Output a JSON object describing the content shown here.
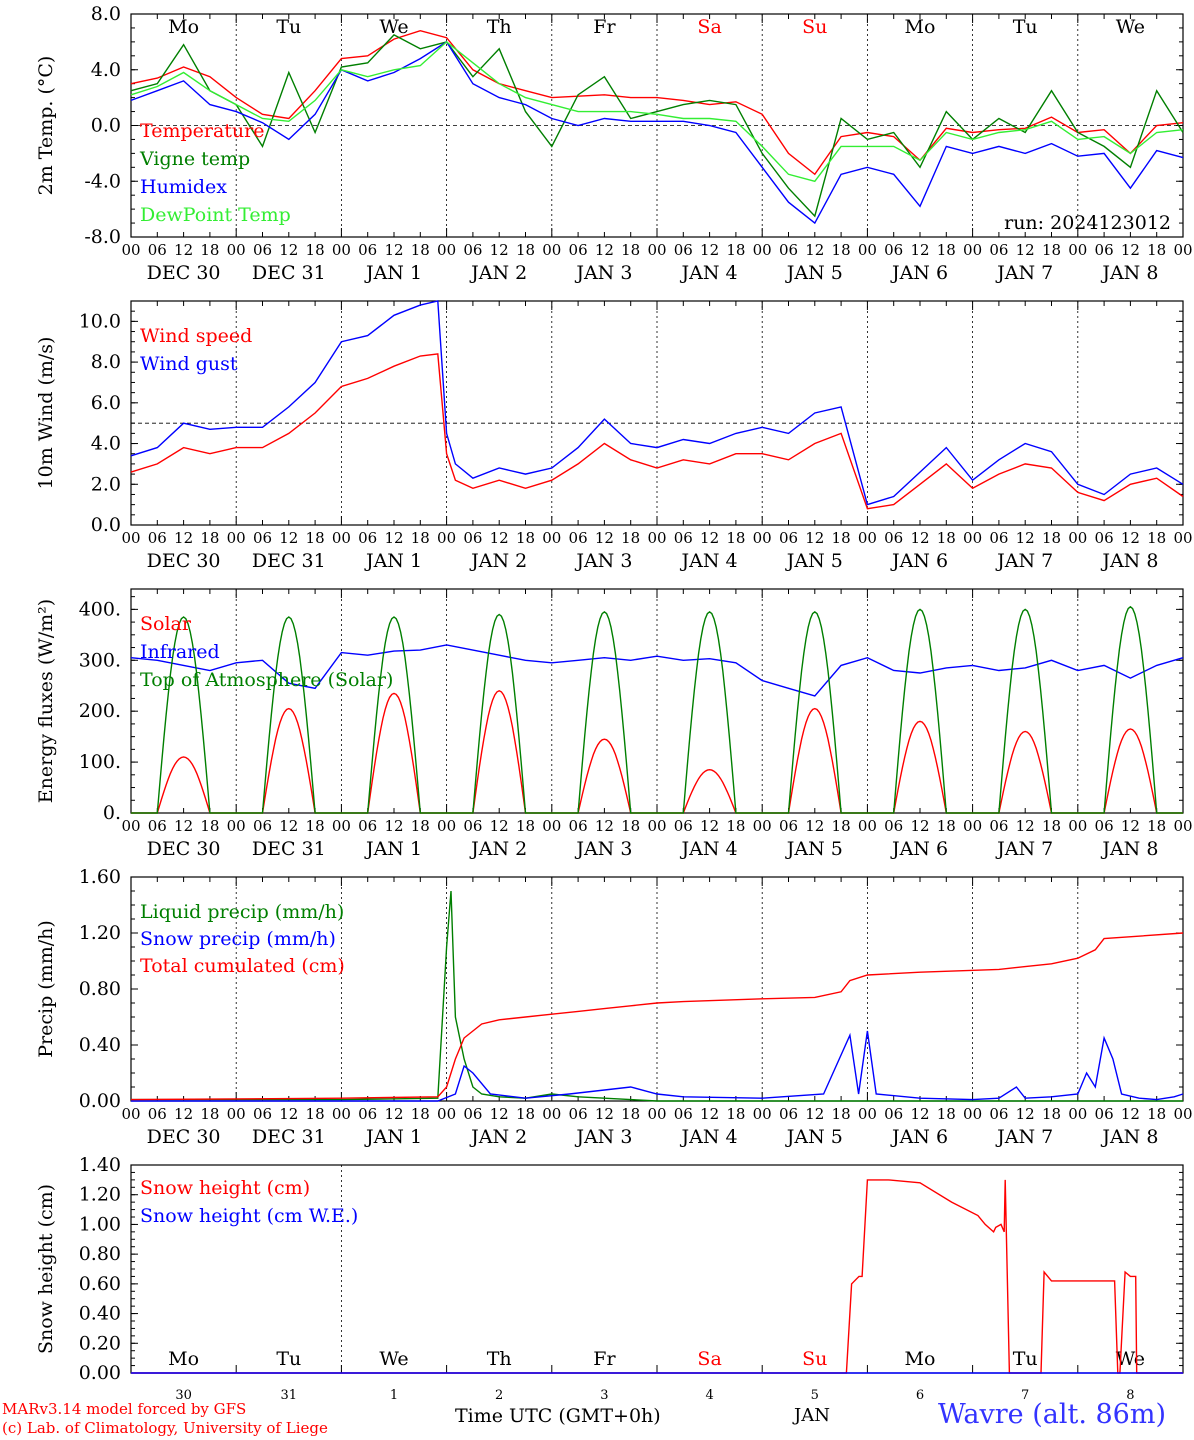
{
  "footer": {
    "credit_line1": "MARv3.14 model forced by GFS",
    "credit_line2": "(c) Lab. of Climatology, University of Liege",
    "time_axis_label": "Time UTC (GMT+0h)",
    "month_label": "JAN",
    "station": "Wavre (alt. 86m)"
  },
  "colors": {
    "red": "#ff0000",
    "green": "#007f00",
    "blue": "#0000ff",
    "lightgreen": "#33ee33",
    "label_red": "#ff0000",
    "station_blue": "#3333ff"
  },
  "weekdays": [
    {
      "name": "Mo",
      "color": "#000000"
    },
    {
      "name": "Tu",
      "color": "#000000"
    },
    {
      "name": "We",
      "color": "#000000"
    },
    {
      "name": "Th",
      "color": "#000000"
    },
    {
      "name": "Fr",
      "color": "#000000"
    },
    {
      "name": "Sa",
      "color": "#ff0000"
    },
    {
      "name": "Su",
      "color": "#ff0000"
    },
    {
      "name": "Mo",
      "color": "#000000"
    },
    {
      "name": "Tu",
      "color": "#000000"
    },
    {
      "name": "We",
      "color": "#000000"
    }
  ],
  "day_labels": [
    "DEC 30",
    "DEC 31",
    "JAN  1",
    "JAN  2",
    "JAN  3",
    "JAN  4",
    "JAN  5",
    "JAN  6",
    "JAN  7",
    "JAN  8"
  ],
  "hour_ticks": [
    "00",
    "06",
    "12",
    "18"
  ],
  "last_hour_tick": "00",
  "bottom_day_numbers": [
    "30",
    "31",
    "1",
    "2",
    "3",
    "4",
    "5",
    "6",
    "7",
    "8"
  ],
  "chart_data": [
    {
      "type": "line",
      "ylabel": "2m Temp. (°C)",
      "ylim": [
        -8,
        8
      ],
      "yticks": [
        "8.0",
        "4.0",
        "0.0",
        "-4.0",
        "-8.0"
      ],
      "ytick_values": [
        8,
        4,
        0,
        -4,
        -8
      ],
      "xlim_hours": [
        0,
        240
      ],
      "ref_line": 0,
      "annotation": "run: 2024123012",
      "series": [
        {
          "name": "Temperature",
          "color": "#ff0000",
          "x": [
            0,
            6,
            12,
            18,
            24,
            30,
            36,
            42,
            48,
            54,
            60,
            66,
            72,
            78,
            84,
            90,
            96,
            102,
            108,
            114,
            120,
            126,
            132,
            138,
            144,
            150,
            156,
            162,
            168,
            174,
            180,
            186,
            192,
            198,
            204,
            210,
            216,
            222,
            228,
            234,
            240
          ],
          "values": [
            3.0,
            3.4,
            4.2,
            3.5,
            2.0,
            0.8,
            0.5,
            2.5,
            4.8,
            5.0,
            6.2,
            6.8,
            6.3,
            4.0,
            3.0,
            2.5,
            2.0,
            2.1,
            2.2,
            2.0,
            2.0,
            1.8,
            1.5,
            1.7,
            0.8,
            -2.0,
            -3.5,
            -0.8,
            -0.5,
            -0.8,
            -2.5,
            -0.2,
            -0.5,
            -0.3,
            -0.2,
            0.6,
            -0.5,
            -0.3,
            -2.0,
            0.0,
            0.2
          ]
        },
        {
          "name": "Vigne temp",
          "color": "#007f00",
          "x": [
            0,
            6,
            12,
            18,
            24,
            30,
            36,
            42,
            48,
            54,
            60,
            66,
            72,
            78,
            84,
            90,
            96,
            102,
            108,
            114,
            120,
            126,
            132,
            138,
            144,
            150,
            156,
            162,
            168,
            174,
            180,
            186,
            192,
            198,
            204,
            210,
            216,
            222,
            228,
            234,
            240
          ],
          "values": [
            2.5,
            3.0,
            5.8,
            2.5,
            1.5,
            -1.5,
            3.8,
            -0.5,
            4.2,
            4.5,
            6.5,
            5.5,
            6.0,
            3.5,
            5.5,
            1.0,
            -1.5,
            2.2,
            3.5,
            0.5,
            1.0,
            1.5,
            1.8,
            1.5,
            -2.0,
            -4.5,
            -6.5,
            0.5,
            -1.0,
            -0.5,
            -3.0,
            1.0,
            -1.0,
            0.5,
            -0.5,
            2.5,
            -0.5,
            -1.5,
            -3.0,
            2.5,
            -0.5
          ]
        },
        {
          "name": "Humidex",
          "color": "#0000ff",
          "x": [
            0,
            6,
            12,
            18,
            24,
            30,
            36,
            42,
            48,
            54,
            60,
            66,
            72,
            78,
            84,
            90,
            96,
            102,
            108,
            114,
            120,
            126,
            132,
            138,
            144,
            150,
            156,
            162,
            168,
            174,
            180,
            186,
            192,
            198,
            204,
            210,
            216,
            222,
            228,
            234,
            240
          ],
          "values": [
            1.8,
            2.5,
            3.2,
            1.5,
            1.0,
            0.2,
            -1.0,
            0.8,
            4.0,
            3.2,
            3.8,
            4.8,
            6.0,
            3.0,
            2.0,
            1.5,
            0.5,
            0.0,
            0.5,
            0.3,
            0.3,
            0.3,
            0.0,
            -0.5,
            -3.0,
            -5.5,
            -7.0,
            -3.5,
            -3.0,
            -3.5,
            -5.8,
            -1.5,
            -2.0,
            -1.5,
            -2.0,
            -1.3,
            -2.2,
            -2.0,
            -4.5,
            -1.8,
            -2.3
          ]
        },
        {
          "name": "DewPoint Temp",
          "color": "#33ee33",
          "x": [
            0,
            6,
            12,
            18,
            24,
            30,
            36,
            42,
            48,
            54,
            60,
            66,
            72,
            78,
            84,
            90,
            96,
            102,
            108,
            114,
            120,
            126,
            132,
            138,
            144,
            150,
            156,
            162,
            168,
            174,
            180,
            186,
            192,
            198,
            204,
            210,
            216,
            222,
            228,
            234,
            240
          ],
          "values": [
            2.2,
            2.8,
            3.8,
            2.5,
            1.5,
            0.5,
            0.3,
            1.8,
            4.0,
            3.5,
            4.0,
            4.3,
            6.0,
            4.5,
            3.0,
            2.0,
            1.5,
            1.0,
            1.0,
            1.0,
            0.8,
            0.5,
            0.5,
            0.3,
            -1.5,
            -3.5,
            -4.0,
            -1.5,
            -1.5,
            -1.5,
            -2.5,
            -0.5,
            -1.0,
            -0.5,
            -0.3,
            0.3,
            -1.0,
            -0.8,
            -2.0,
            -0.5,
            -0.3
          ]
        }
      ]
    },
    {
      "type": "line",
      "ylabel": "10m Wind (m/s)",
      "ylim": [
        0,
        11
      ],
      "yticks": [
        "10.0",
        "8.0",
        "6.0",
        "4.0",
        "2.0",
        "0.0"
      ],
      "ytick_values": [
        10,
        8,
        6,
        4,
        2,
        0
      ],
      "xlim_hours": [
        0,
        240
      ],
      "ref_line": 5,
      "series": [
        {
          "name": "Wind speed",
          "color": "#ff0000",
          "x": [
            0,
            6,
            12,
            18,
            24,
            30,
            36,
            42,
            48,
            54,
            60,
            66,
            70,
            72,
            74,
            78,
            84,
            90,
            96,
            102,
            108,
            114,
            120,
            126,
            132,
            138,
            144,
            150,
            156,
            162,
            168,
            174,
            180,
            186,
            192,
            198,
            204,
            210,
            216,
            222,
            228,
            234,
            240
          ],
          "values": [
            2.6,
            3.0,
            3.8,
            3.5,
            3.8,
            3.8,
            4.5,
            5.5,
            6.8,
            7.2,
            7.8,
            8.3,
            8.4,
            3.5,
            2.2,
            1.8,
            2.2,
            1.8,
            2.2,
            3.0,
            4.0,
            3.2,
            2.8,
            3.2,
            3.0,
            3.5,
            3.5,
            3.2,
            4.0,
            4.5,
            0.8,
            1.0,
            2.0,
            3.0,
            1.8,
            2.5,
            3.0,
            2.8,
            1.6,
            1.2,
            2.0,
            2.3,
            1.4
          ]
        },
        {
          "name": "Wind gust",
          "color": "#0000ff",
          "x": [
            0,
            6,
            12,
            18,
            24,
            30,
            36,
            42,
            48,
            54,
            60,
            66,
            70,
            72,
            74,
            78,
            84,
            90,
            96,
            102,
            108,
            114,
            120,
            126,
            132,
            138,
            144,
            150,
            156,
            162,
            168,
            174,
            180,
            186,
            192,
            198,
            204,
            210,
            216,
            222,
            228,
            234,
            240
          ],
          "values": [
            3.4,
            3.8,
            5.0,
            4.7,
            4.8,
            4.8,
            5.8,
            7.0,
            9.0,
            9.3,
            10.3,
            10.8,
            11.0,
            4.5,
            3.0,
            2.3,
            2.8,
            2.5,
            2.8,
            3.8,
            5.2,
            4.0,
            3.8,
            4.2,
            4.0,
            4.5,
            4.8,
            4.5,
            5.5,
            5.8,
            1.0,
            1.4,
            2.6,
            3.8,
            2.2,
            3.2,
            4.0,
            3.6,
            2.0,
            1.5,
            2.5,
            2.8,
            2.0
          ]
        }
      ]
    },
    {
      "type": "line",
      "ylabel": "Energy fluxes (W/m²)",
      "ylim": [
        0,
        440
      ],
      "yticks": [
        "400.",
        "300.",
        "200.",
        "100.",
        "0."
      ],
      "ytick_values": [
        400,
        300,
        200,
        100,
        0
      ],
      "xlim_hours": [
        0,
        240
      ],
      "series": [
        {
          "name": "Solar",
          "color": "#ff0000",
          "daily_peak_hour": 12,
          "daily_peaks": [
            110,
            205,
            235,
            240,
            145,
            85,
            205,
            180,
            160,
            165
          ]
        },
        {
          "name": "Infrared",
          "color": "#0000ff",
          "x": [
            0,
            6,
            12,
            18,
            24,
            30,
            36,
            42,
            48,
            54,
            60,
            66,
            72,
            78,
            84,
            90,
            96,
            102,
            108,
            114,
            120,
            126,
            132,
            138,
            144,
            150,
            156,
            162,
            168,
            174,
            180,
            186,
            192,
            198,
            204,
            210,
            216,
            222,
            228,
            234,
            240
          ],
          "values": [
            305,
            300,
            290,
            280,
            295,
            300,
            255,
            245,
            315,
            310,
            318,
            320,
            330,
            320,
            310,
            300,
            295,
            300,
            305,
            300,
            308,
            300,
            303,
            295,
            260,
            245,
            230,
            290,
            305,
            280,
            275,
            285,
            290,
            280,
            285,
            300,
            280,
            290,
            265,
            290,
            305
          ]
        },
        {
          "name": "Top of Atmosphere (Solar)",
          "color": "#007f00",
          "daily_peak_hour": 12,
          "daily_peaks": [
            385,
            385,
            385,
            390,
            395,
            395,
            395,
            400,
            400,
            405
          ]
        }
      ]
    },
    {
      "type": "line",
      "ylabel": "Precip (mm/h)",
      "ylim": [
        0,
        1.6
      ],
      "yticks": [
        "1.60",
        "1.20",
        "0.80",
        "0.40",
        "0.00"
      ],
      "ytick_values": [
        1.6,
        1.2,
        0.8,
        0.4,
        0
      ],
      "xlim_hours": [
        0,
        240
      ],
      "series": [
        {
          "name": "Liquid precip (mm/h)",
          "color": "#007f00",
          "x": [
            0,
            24,
            48,
            70,
            72,
            73,
            74,
            76,
            78,
            80,
            84,
            90,
            96,
            102,
            108,
            114,
            120,
            240
          ],
          "values": [
            0.01,
            0.01,
            0.01,
            0.02,
            1.1,
            1.5,
            0.6,
            0.3,
            0.1,
            0.05,
            0.03,
            0.02,
            0.05,
            0.03,
            0.02,
            0.01,
            0.0,
            0.0
          ]
        },
        {
          "name": "Snow precip (mm/h)",
          "color": "#0000ff",
          "x": [
            0,
            70,
            74,
            76,
            78,
            82,
            90,
            100,
            114,
            120,
            126,
            144,
            158,
            164,
            166,
            168,
            170,
            180,
            192,
            198,
            202,
            204,
            210,
            216,
            218,
            220,
            222,
            224,
            226,
            230,
            234,
            238,
            240
          ],
          "values": [
            0.0,
            0.0,
            0.05,
            0.25,
            0.2,
            0.05,
            0.02,
            0.05,
            0.1,
            0.05,
            0.03,
            0.02,
            0.05,
            0.47,
            0.05,
            0.5,
            0.05,
            0.02,
            0.01,
            0.02,
            0.1,
            0.02,
            0.03,
            0.05,
            0.2,
            0.1,
            0.45,
            0.3,
            0.05,
            0.02,
            0.01,
            0.03,
            0.05
          ]
        },
        {
          "name": "Total cumulated (cm)",
          "color": "#ff0000",
          "x": [
            0,
            48,
            70,
            72,
            74,
            76,
            80,
            84,
            90,
            96,
            102,
            108,
            114,
            120,
            126,
            144,
            156,
            162,
            164,
            168,
            180,
            198,
            204,
            210,
            216,
            220,
            222,
            240
          ],
          "values": [
            0.01,
            0.02,
            0.03,
            0.1,
            0.3,
            0.45,
            0.55,
            0.58,
            0.6,
            0.62,
            0.64,
            0.66,
            0.68,
            0.7,
            0.71,
            0.73,
            0.74,
            0.78,
            0.86,
            0.9,
            0.92,
            0.94,
            0.96,
            0.98,
            1.02,
            1.08,
            1.16,
            1.2
          ]
        }
      ]
    },
    {
      "type": "line",
      "ylabel": "Snow height (cm)",
      "ylim": [
        0,
        1.4
      ],
      "yticks": [
        "1.40",
        "1.20",
        "1.00",
        "0.80",
        "0.60",
        "0.40",
        "0.20",
        "0.00"
      ],
      "ytick_values": [
        1.4,
        1.2,
        1.0,
        0.8,
        0.6,
        0.4,
        0.2,
        0
      ],
      "xlim_days": [
        0,
        10
      ],
      "series": [
        {
          "name": "Snow height (cm)",
          "color": "#ff0000",
          "x": [
            0,
            6.8,
            6.85,
            6.92,
            6.95,
            7.0,
            7.2,
            7.5,
            7.8,
            8.05,
            8.12,
            8.2,
            8.22,
            8.27,
            8.3,
            8.31,
            8.35,
            8.65,
            8.68,
            8.75,
            9.35,
            9.38,
            9.4,
            9.45,
            9.5,
            9.55,
            9.56,
            9.6,
            10
          ],
          "values": [
            0,
            0,
            0.6,
            0.65,
            0.65,
            1.3,
            1.3,
            1.28,
            1.15,
            1.06,
            1.0,
            0.95,
            0.98,
            1.0,
            0.95,
            1.3,
            0,
            0,
            0.68,
            0.62,
            0.62,
            0,
            0,
            0.68,
            0.65,
            0.65,
            0,
            0,
            0
          ]
        },
        {
          "name": "Snow height (cm W.E.)",
          "color": "#0000ff",
          "x": [
            0,
            10
          ],
          "values": [
            0,
            0
          ]
        }
      ]
    }
  ]
}
